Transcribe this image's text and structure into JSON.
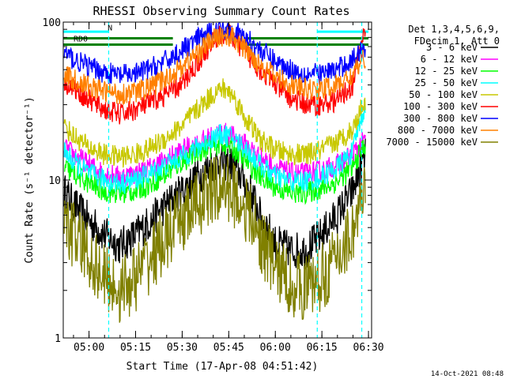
{
  "chart_data": {
    "type": "line",
    "title": "RHESSI Observing Summary Count Rates",
    "xlabel": "Start Time (17-Apr-08 04:51:42)",
    "ylabel": "Count Rate (s⁻¹ detector⁻¹)",
    "yscale": "log",
    "ylim": [
      1,
      100
    ],
    "xlim": [
      "04:51:42",
      "06:31:00"
    ],
    "x_ticks": [
      "05:00",
      "05:15",
      "05:30",
      "05:45",
      "06:00",
      "06:15",
      "06:30"
    ],
    "y_ticks": [
      "1",
      "10",
      "100"
    ],
    "grid": false,
    "legend_position": "right",
    "legend_header": [
      "Det 1,3,4,5,6,9,",
      "FDecim 1, Att 0"
    ],
    "timestamp": "14-Oct-2021 08:48",
    "annotations": [
      {
        "label": "RD0",
        "time": "04:55",
        "value": 79
      },
      {
        "label": "N",
        "time": "05:06",
        "value": 93
      }
    ],
    "flags": [
      {
        "name": "RD0",
        "color": "#008000",
        "intervals": [
          [
            "04:51:42",
            "05:27:00"
          ],
          [
            "05:51:00",
            "06:30:00"
          ]
        ],
        "levels": [
          72,
          79
        ]
      },
      {
        "name": "night",
        "color": "#00ffff",
        "intervals": [
          [
            "04:51:42",
            "05:06:20"
          ],
          [
            "06:13:30",
            "06:30:00"
          ]
        ],
        "levels": [
          87
        ]
      }
    ],
    "night_boundaries": [
      "05:06:20",
      "06:13:30",
      "06:27:50"
    ],
    "x": [
      "04:52",
      "04:55",
      "05:00",
      "05:05",
      "05:10",
      "05:15",
      "05:20",
      "05:25",
      "05:30",
      "05:35",
      "05:40",
      "05:43",
      "05:46",
      "05:50",
      "05:55",
      "06:00",
      "06:05",
      "06:10",
      "06:15",
      "06:20",
      "06:25",
      "06:29"
    ],
    "series": [
      {
        "name": "3 - 6 keV",
        "color": "#000000",
        "values": [
          8.5,
          7.0,
          5.5,
          4.5,
          3.8,
          4.5,
          5.5,
          7.0,
          8.5,
          10.5,
          12.5,
          13.0,
          12.5,
          10.0,
          6.0,
          4.0,
          3.6,
          3.6,
          4.5,
          6.0,
          8.5,
          14.0
        ]
      },
      {
        "name": "6 - 12 keV",
        "color": "#ff00ff",
        "values": [
          16.0,
          14.5,
          12.5,
          11.0,
          10.5,
          11.0,
          12.0,
          13.5,
          15.5,
          17.0,
          19.0,
          20.0,
          19.0,
          17.0,
          14.0,
          12.0,
          11.0,
          11.0,
          11.5,
          12.5,
          14.5,
          18.0
        ]
      },
      {
        "name": "12 - 25 keV",
        "color": "#00ff00",
        "values": [
          12.0,
          11.0,
          9.5,
          8.5,
          8.2,
          8.5,
          9.5,
          11.0,
          13.0,
          15.0,
          16.5,
          17.0,
          16.0,
          13.5,
          10.5,
          9.0,
          8.3,
          8.3,
          8.8,
          9.8,
          12.0,
          17.0
        ]
      },
      {
        "name": "25 - 50 keV",
        "color": "#00ffff",
        "values": [
          15.0,
          13.0,
          11.0,
          10.0,
          9.5,
          10.0,
          11.0,
          12.5,
          14.0,
          16.0,
          18.5,
          19.5,
          18.5,
          16.0,
          12.5,
          10.5,
          9.8,
          9.8,
          10.5,
          12.0,
          15.0,
          30.0
        ]
      },
      {
        "name": "50 - 100 keV",
        "color": "#c8c800",
        "values": [
          22.0,
          19.0,
          16.0,
          14.5,
          14.0,
          14.5,
          16.0,
          18.5,
          22.0,
          28.0,
          35.0,
          38.0,
          35.0,
          25.0,
          18.0,
          15.5,
          14.5,
          14.5,
          15.5,
          17.5,
          21.0,
          32.0
        ]
      },
      {
        "name": "100 - 300 keV",
        "color": "#ff0000",
        "values": [
          42.0,
          38.0,
          32.0,
          28.0,
          26.0,
          28.0,
          31.0,
          35.0,
          40.0,
          55.0,
          75.0,
          85.0,
          82.0,
          65.0,
          50.0,
          40.0,
          33.0,
          30.0,
          30.0,
          32.0,
          40.0,
          90.0
        ]
      },
      {
        "name": "300 - 800 keV",
        "color": "#0000ff",
        "values": [
          64.0,
          58.0,
          52.0,
          48.0,
          46.0,
          47.0,
          51.0,
          57.0,
          66.0,
          78.0,
          88.0,
          92.0,
          90.0,
          80.0,
          67.0,
          56.0,
          50.0,
          47.0,
          47.0,
          50.0,
          58.0,
          70.0
        ]
      },
      {
        "name": "800 - 7000 keV",
        "color": "#ff8000",
        "values": [
          47.0,
          43.0,
          39.0,
          36.5,
          35.0,
          36.0,
          39.0,
          44.0,
          52.0,
          64.0,
          78.0,
          82.0,
          80.0,
          68.0,
          54.0,
          45.0,
          40.0,
          37.5,
          37.5,
          40.0,
          46.0,
          60.0
        ]
      },
      {
        "name": "7000 - 15000 keV",
        "color": "#808000",
        "values": [
          5.5,
          4.5,
          3.3,
          2.4,
          2.0,
          2.4,
          3.2,
          4.3,
          5.6,
          7.0,
          8.6,
          9.0,
          8.5,
          6.8,
          4.2,
          2.8,
          2.2,
          2.1,
          2.4,
          3.2,
          4.8,
          8.0
        ]
      }
    ]
  }
}
